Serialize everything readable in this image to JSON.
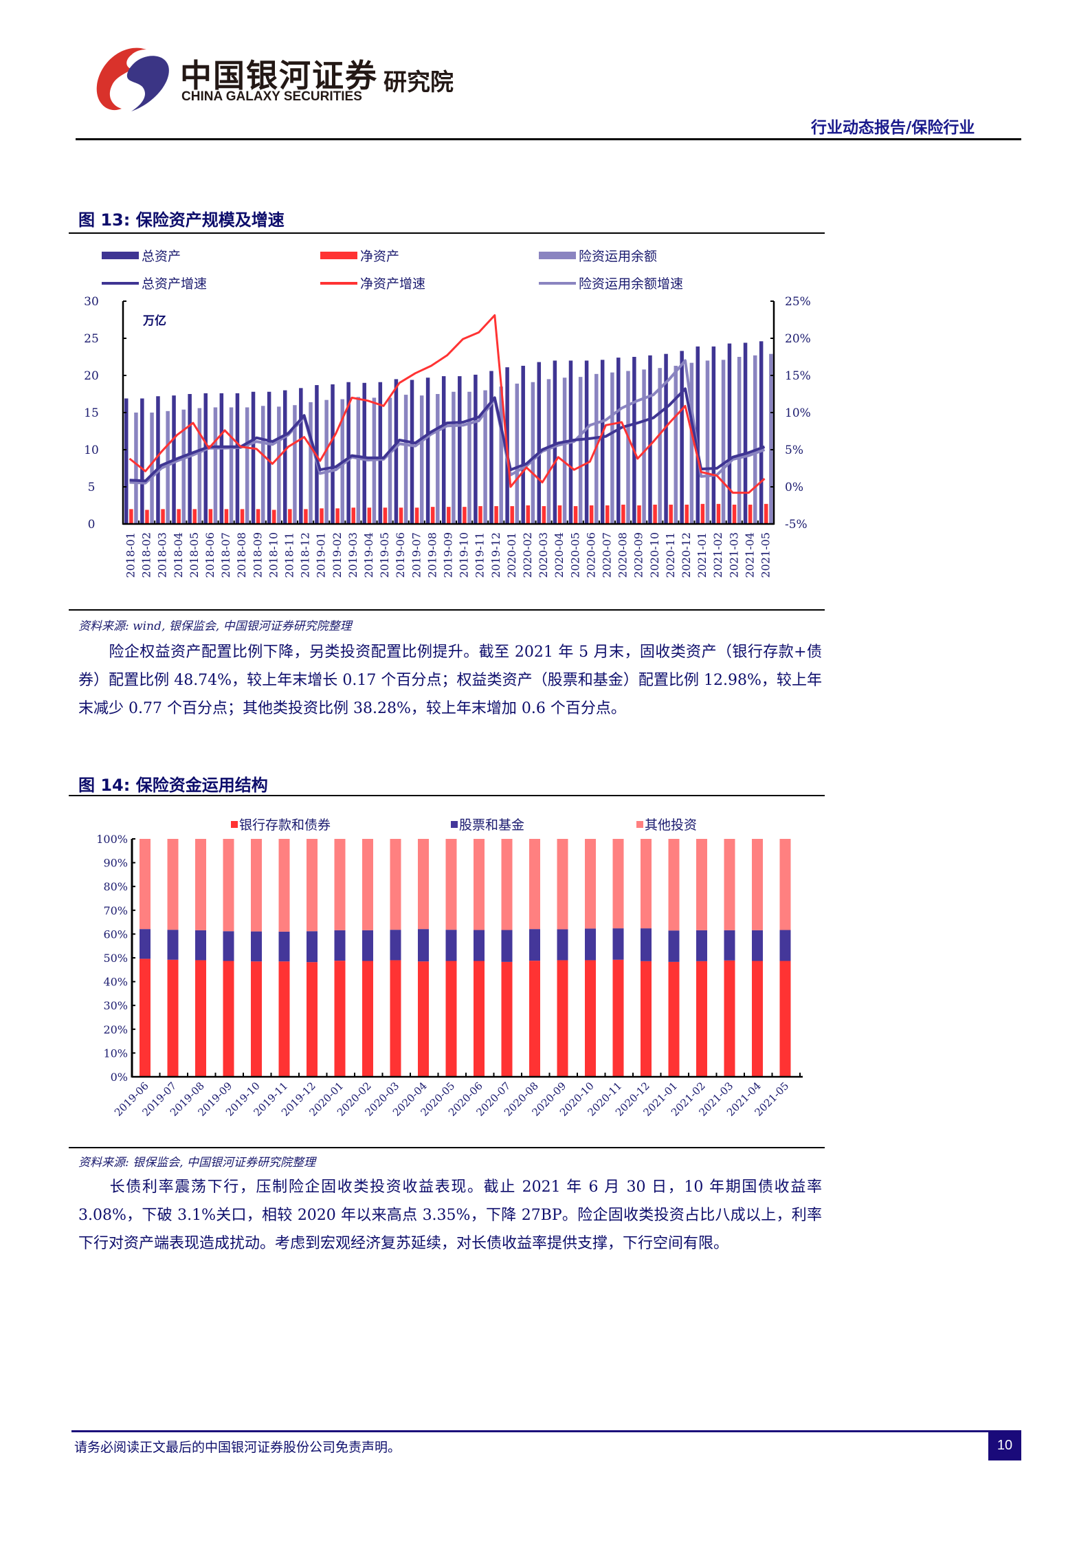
{
  "header": {
    "logo_cn": "中国银河证券",
    "logo_en": "CHINA GALAXY SECURITIES",
    "institute": "研究院",
    "report_type": "行业动态报告/保险行业",
    "logo_colors": {
      "red": "#d9322b",
      "blue": "#3b3585"
    }
  },
  "figure13": {
    "title": "图 13: 保险资产规模及增速",
    "source": "资料来源: wind, 银保监会, 中国银河证券研究院整理"
  },
  "paragraph1": "险企权益资产配置比例下降，另类投资配置比例提升。截至 2021 年 5 月末，固收类资产（银行存款+债券）配置比例 48.74%，较上年末增长 0.17 个百分点；权益类资产（股票和基金）配置比例 12.98%，较上年末减少 0.77 个百分点；其他类投资比例 38.28%，较上年末增加 0.6 个百分点。",
  "figure14": {
    "title": "图 14: 保险资金运用结构",
    "source": "资料来源: 银保监会, 中国银河证券研究院整理"
  },
  "paragraph2": "长债利率震荡下行，压制险企固收类投资收益表现。截止 2021 年 6 月 30 日，10 年期国债收益率 3.08%，下破 3.1%关口，相较 2020 年以来高点 3.35%，下降 27BP。险企固收类投资占比八成以上，利率下行对资产端表现造成扰动。考虑到宏观经济复苏延续，对长债收益率提供支撑，下行空间有限。",
  "footer": {
    "disclaimer": "请务必阅读正文最后的中国银河证券股份公司免责声明。",
    "page_number": "10"
  },
  "chart_data": [
    {
      "type": "bar+line",
      "title": "保险资产规模及增速",
      "ylabel": "万亿",
      "ylim": [
        0,
        30
      ],
      "y_ticks": [
        "0",
        "5",
        "10",
        "15",
        "20",
        "25",
        "30"
      ],
      "y2lim": [
        -5,
        25
      ],
      "y2_ticks": [
        "-5%",
        "0%",
        "5%",
        "10%",
        "15%",
        "20%",
        "25%"
      ],
      "legend_position": "top",
      "colors": {
        "总资产": "#3f3593",
        "净资产": "#ff3333",
        "险资运用余额": "#8a84c0",
        "总资产增速": "#3f3593",
        "净资产增速": "#ff3333",
        "险资运用余额增速": "#8a84c0"
      },
      "categories": [
        "2018-01",
        "2018-02",
        "2018-03",
        "2018-04",
        "2018-05",
        "2018-06",
        "2018-07",
        "2018-08",
        "2018-09",
        "2018-10",
        "2018-11",
        "2018-12",
        "2019-01",
        "2019-02",
        "2019-03",
        "2019-04",
        "2019-05",
        "2019-06",
        "2019-07",
        "2019-08",
        "2019-09",
        "2019-10",
        "2019-11",
        "2019-12",
        "2020-01",
        "2020-02",
        "2020-03",
        "2020-04",
        "2020-05",
        "2020-06",
        "2020-07",
        "2020-08",
        "2020-09",
        "2020-10",
        "2020-11",
        "2020-12",
        "2021-01",
        "2021-02",
        "2021-03",
        "2021-04",
        "2021-05"
      ],
      "series": [
        {
          "name": "总资产",
          "kind": "bar",
          "axis": "left",
          "values": [
            16.9,
            16.9,
            17.2,
            17.3,
            17.5,
            17.6,
            17.6,
            17.6,
            17.8,
            17.8,
            18.0,
            18.3,
            18.7,
            18.8,
            19.1,
            19.0,
            19.1,
            19.5,
            19.4,
            19.7,
            19.9,
            19.9,
            20.1,
            20.6,
            21.1,
            21.3,
            21.8,
            22.0,
            22.0,
            22.0,
            22.1,
            22.4,
            22.5,
            22.7,
            22.9,
            23.3,
            23.9,
            23.9,
            24.3,
            24.4,
            24.6
          ]
        },
        {
          "name": "净资产",
          "kind": "bar",
          "axis": "left",
          "values": [
            2.0,
            1.9,
            2.0,
            2.0,
            2.0,
            2.0,
            2.0,
            2.0,
            2.0,
            1.9,
            2.0,
            2.0,
            2.1,
            2.1,
            2.2,
            2.2,
            2.2,
            2.2,
            2.2,
            2.3,
            2.3,
            2.3,
            2.4,
            2.4,
            2.4,
            2.5,
            2.4,
            2.5,
            2.4,
            2.5,
            2.5,
            2.6,
            2.5,
            2.6,
            2.6,
            2.6,
            2.7,
            2.7,
            2.6,
            2.6,
            2.7
          ]
        },
        {
          "name": "险资运用余额",
          "kind": "bar",
          "axis": "left",
          "values": [
            15.0,
            15.0,
            15.2,
            15.4,
            15.6,
            15.7,
            15.7,
            15.7,
            15.9,
            15.8,
            16.0,
            16.4,
            16.7,
            16.8,
            17.1,
            17.0,
            17.0,
            17.4,
            17.3,
            17.5,
            17.8,
            17.8,
            18.0,
            18.5,
            18.9,
            19.1,
            19.5,
            19.7,
            19.8,
            20.2,
            20.4,
            20.6,
            20.8,
            21.0,
            21.3,
            21.7,
            22.0,
            22.1,
            22.5,
            22.7,
            22.9
          ]
        },
        {
          "name": "总资产增速",
          "kind": "line",
          "axis": "right",
          "values": [
            0.9,
            0.8,
            2.9,
            3.8,
            4.6,
            5.4,
            5.4,
            5.4,
            6.6,
            6.1,
            7.2,
            9.6,
            2.3,
            2.7,
            4.2,
            3.9,
            3.9,
            6.3,
            5.9,
            7.4,
            8.6,
            8.7,
            9.4,
            12.0,
            2.3,
            3.1,
            5.0,
            5.9,
            6.3,
            6.5,
            6.8,
            8.0,
            8.6,
            9.3,
            11.0,
            13.2,
            2.4,
            2.5,
            4.0,
            4.6,
            5.4
          ]
        },
        {
          "name": "净资产增速",
          "kind": "line",
          "axis": "right",
          "values": [
            3.8,
            2.1,
            4.7,
            7.0,
            8.6,
            5.2,
            7.6,
            5.4,
            5.1,
            3.1,
            5.4,
            6.7,
            3.5,
            7.2,
            12.0,
            11.6,
            10.9,
            14.0,
            15.3,
            16.3,
            17.7,
            19.9,
            20.8,
            23.1,
            0.0,
            2.6,
            0.6,
            4.0,
            2.3,
            3.4,
            8.3,
            8.7,
            3.8,
            6.1,
            8.6,
            10.9,
            2.0,
            1.5,
            -0.8,
            -0.8,
            1.1
          ]
        },
        {
          "name": "险资运用余额增速",
          "kind": "line",
          "axis": "right",
          "values": [
            0.6,
            0.5,
            2.5,
            3.5,
            4.3,
            5.2,
            5.2,
            5.3,
            6.1,
            5.7,
            7.0,
            9.4,
            1.8,
            2.3,
            4.0,
            3.6,
            3.7,
            5.8,
            5.5,
            7.1,
            8.2,
            8.3,
            8.9,
            11.8,
            1.6,
            2.8,
            4.8,
            5.6,
            6.1,
            8.3,
            9.0,
            10.6,
            11.6,
            12.4,
            14.5,
            17.0,
            1.4,
            1.6,
            3.7,
            4.2,
            5.0
          ]
        }
      ]
    },
    {
      "type": "bar",
      "stacked": true,
      "title": "保险资金运用结构",
      "ylim": [
        0,
        100
      ],
      "y_ticks": [
        "0%",
        "10%",
        "20%",
        "30%",
        "40%",
        "50%",
        "60%",
        "70%",
        "80%",
        "90%",
        "100%"
      ],
      "legend_position": "top",
      "colors": {
        "银行存款和债券": "#ff3333",
        "股票和基金": "#44379a",
        "其他投资": "#ff8080"
      },
      "categories": [
        "2019-06",
        "2019-07",
        "2019-08",
        "2019-09",
        "2019-10",
        "2019-11",
        "2019-12",
        "2020-01",
        "2020-02",
        "2020-03",
        "2020-04",
        "2020-05",
        "2020-06",
        "2020-07",
        "2020-08",
        "2020-09",
        "2020-10",
        "2020-11",
        "2020-12",
        "2021-01",
        "2021-02",
        "2021-03",
        "2021-04",
        "2021-05"
      ],
      "series": [
        {
          "name": "银行存款和债券",
          "values": [
            49.6,
            49.2,
            49.0,
            48.7,
            48.5,
            48.5,
            48.2,
            48.8,
            48.7,
            49.0,
            48.5,
            48.7,
            48.7,
            48.3,
            48.8,
            49.0,
            49.0,
            49.2,
            48.6,
            48.3,
            48.6,
            48.9,
            48.7,
            48.7
          ]
        },
        {
          "name": "股票和基金",
          "values": [
            12.5,
            12.6,
            12.6,
            12.5,
            12.6,
            12.5,
            13.0,
            12.8,
            12.9,
            12.8,
            13.6,
            13.1,
            13.0,
            13.4,
            13.3,
            13.0,
            13.3,
            13.2,
            13.8,
            13.2,
            13.0,
            12.7,
            12.9,
            13.0
          ]
        },
        {
          "name": "其他投资",
          "values": [
            37.9,
            38.2,
            38.4,
            38.8,
            38.9,
            39.0,
            38.8,
            38.4,
            38.4,
            38.2,
            37.9,
            38.2,
            38.3,
            38.3,
            37.9,
            38.0,
            37.7,
            37.6,
            37.6,
            38.5,
            38.4,
            38.4,
            38.4,
            38.3
          ]
        }
      ]
    }
  ]
}
